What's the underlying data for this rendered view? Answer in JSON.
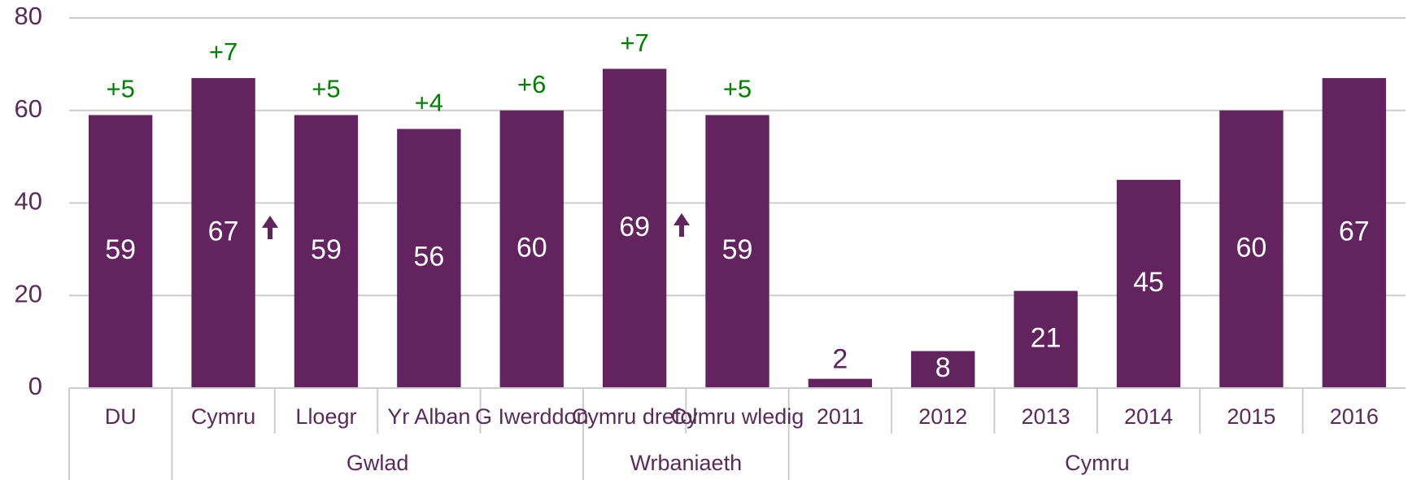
{
  "chart_data": {
    "type": "bar",
    "categories": [
      "DU",
      "Cymru",
      "Lloegr",
      "Yr Alban",
      "G Iwerddon",
      "Cymru drefol",
      "Cymru wledig",
      "2011",
      "2012",
      "2013",
      "2014",
      "2015",
      "2016"
    ],
    "values": [
      59,
      67,
      59,
      56,
      60,
      69,
      59,
      2,
      8,
      21,
      45,
      60,
      67
    ],
    "change_labels": [
      "+5",
      "+7",
      "+5",
      "+4",
      "+6",
      "+7",
      "+5",
      null,
      null,
      null,
      null,
      null,
      null
    ],
    "groups": [
      {
        "label": "Gwlad",
        "start": 1,
        "end": 4
      },
      {
        "label": "Wrbaniaeth",
        "start": 5,
        "end": 6
      },
      {
        "label": "Cymru",
        "start": 7,
        "end": 12
      }
    ],
    "color": "#62235f",
    "change_color": "#008000",
    "ylim": [
      0,
      80
    ],
    "yticks": [
      0,
      20,
      40,
      60,
      80
    ],
    "grid": true
  }
}
